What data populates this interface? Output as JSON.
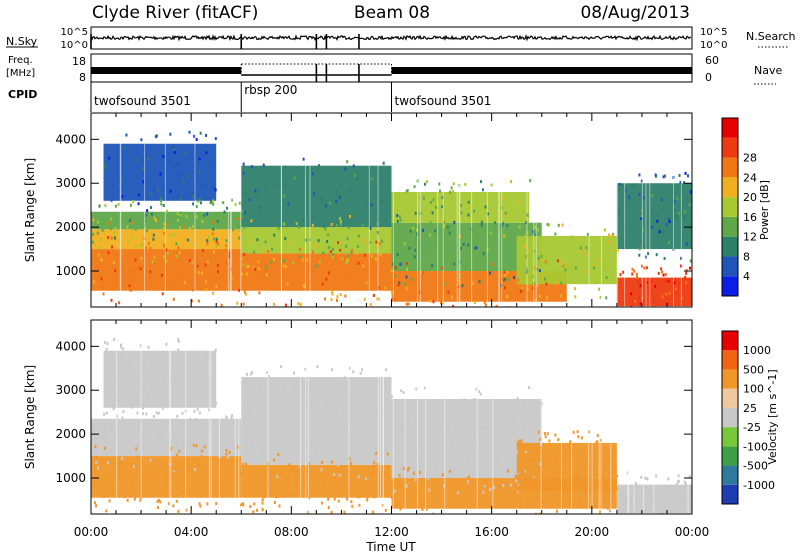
{
  "header": {
    "station": "Clyde River (fitACF)",
    "beam": "Beam 08",
    "date": "08/Aug/2013"
  },
  "status_panels": {
    "nsky_label": "N.Sky",
    "nsearch_label": "N.Search",
    "freq_label_line1": "Freq.",
    "freq_label_line2": "[MHz]",
    "nave_label": "Nave",
    "cpid_label": "CPID",
    "nsky_left_ticks": [
      "10^5",
      "10^0"
    ],
    "nsky_right_ticks": [
      "10^5",
      "10^0"
    ],
    "freq_left_ticks": [
      "18",
      "8"
    ],
    "nave_right_ticks": [
      "60",
      "0"
    ],
    "cpid_segments": [
      {
        "label": "twofsound 3501",
        "start_hour": 0,
        "end_hour": 6
      },
      {
        "label": "rbsp 200",
        "start_hour": 6,
        "end_hour": 12
      },
      {
        "label": "twofsound 3501",
        "start_hour": 12,
        "end_hour": 24
      }
    ],
    "nsky_drops_hours": [
      0.0,
      6.0,
      9.0,
      9.4,
      10.7
    ],
    "nave_drops_hours": [
      9.0,
      9.4,
      10.7
    ]
  },
  "chart_data": [
    {
      "type": "heatmap",
      "title": "Power",
      "xlabel": "Time UT",
      "ylabel": "Slant Range [km]",
      "xlim": [
        0,
        24
      ],
      "ylim": [
        180,
        4600
      ],
      "x_ticks": [
        "00:00",
        "04:00",
        "08:00",
        "12:00",
        "16:00",
        "20:00",
        "00:00"
      ],
      "y_ticks": [
        1000,
        2000,
        3000,
        4000
      ],
      "colorbar": {
        "label": "Power [dB]",
        "ticks": [
          4,
          8,
          12,
          16,
          20,
          24,
          28
        ],
        "colors": [
          "#0a1ee6",
          "#1f55b8",
          "#2e7f6a",
          "#5fa84a",
          "#a8c832",
          "#f0b020",
          "#f07814",
          "#ee3a10",
          "#e60000"
        ]
      },
      "regions": [
        {
          "t0": 0.0,
          "t1": 6.0,
          "r0": 550,
          "r1": 1500,
          "value": 27
        },
        {
          "t0": 0.0,
          "t1": 6.0,
          "r0": 1500,
          "r1": 1950,
          "value": 22
        },
        {
          "t0": 0.0,
          "t1": 6.0,
          "r0": 1950,
          "r1": 2350,
          "value": 14
        },
        {
          "t0": 0.5,
          "t1": 5.0,
          "r0": 2600,
          "r1": 3900,
          "value": 7
        },
        {
          "t0": 6.0,
          "t1": 12.0,
          "r0": 550,
          "r1": 1400,
          "value": 25
        },
        {
          "t0": 6.0,
          "t1": 12.0,
          "r0": 1400,
          "r1": 2000,
          "value": 17
        },
        {
          "t0": 6.0,
          "t1": 12.0,
          "r0": 2000,
          "r1": 3400,
          "value": 9
        },
        {
          "t0": 12.0,
          "t1": 19.0,
          "r0": 300,
          "r1": 1000,
          "value": 26
        },
        {
          "t0": 12.0,
          "t1": 18.0,
          "r0": 1000,
          "r1": 2100,
          "value": 12
        },
        {
          "t0": 12.0,
          "t1": 17.5,
          "r0": 2100,
          "r1": 2800,
          "value": 16
        },
        {
          "t0": 17.0,
          "t1": 21.0,
          "r0": 700,
          "r1": 1800,
          "value": 18
        },
        {
          "t0": 21.0,
          "t1": 24.0,
          "r0": 200,
          "r1": 850,
          "value": 29
        },
        {
          "t0": 21.0,
          "t1": 24.0,
          "r0": 1500,
          "r1": 3000,
          "value": 8
        }
      ]
    },
    {
      "type": "heatmap",
      "title": "Velocity",
      "xlabel": "Time UT",
      "ylabel": "Slant Range [km]",
      "xlim": [
        0,
        24
      ],
      "ylim": [
        180,
        4600
      ],
      "x_ticks": [
        "00:00",
        "04:00",
        "08:00",
        "12:00",
        "16:00",
        "20:00",
        "00:00"
      ],
      "y_ticks": [
        1000,
        2000,
        3000,
        4000
      ],
      "colorbar": {
        "label": "Velocity [m s^-1]",
        "ticks": [
          "1000",
          "500",
          "100",
          "25",
          "-25",
          "-100",
          "-500",
          "-1000"
        ],
        "colors": [
          "#1e3cb4",
          "#2f7a9a",
          "#3ca046",
          "#78c83c",
          "#c8c8c8",
          "#f0c8a0",
          "#f09628",
          "#f06414",
          "#e60000"
        ]
      },
      "regions": [
        {
          "t0": 0.0,
          "t1": 6.0,
          "r0": 550,
          "r1": 1500,
          "value": -200
        },
        {
          "t0": 0.0,
          "t1": 6.0,
          "r0": 1500,
          "r1": 2350,
          "value": 0
        },
        {
          "t0": 0.5,
          "t1": 5.0,
          "r0": 2600,
          "r1": 3900,
          "value": 0
        },
        {
          "t0": 6.0,
          "t1": 12.0,
          "r0": 550,
          "r1": 1300,
          "value": -300
        },
        {
          "t0": 6.0,
          "t1": 12.0,
          "r0": 1300,
          "r1": 3300,
          "value": 0
        },
        {
          "t0": 12.0,
          "t1": 21.0,
          "r0": 300,
          "r1": 1000,
          "value": -350
        },
        {
          "t0": 12.0,
          "t1": 18.0,
          "r0": 1000,
          "r1": 2800,
          "value": 0
        },
        {
          "t0": 17.0,
          "t1": 21.0,
          "r0": 700,
          "r1": 1800,
          "value": -300
        },
        {
          "t0": 21.0,
          "t1": 24.0,
          "r0": 200,
          "r1": 850,
          "value": 0
        }
      ]
    }
  ]
}
